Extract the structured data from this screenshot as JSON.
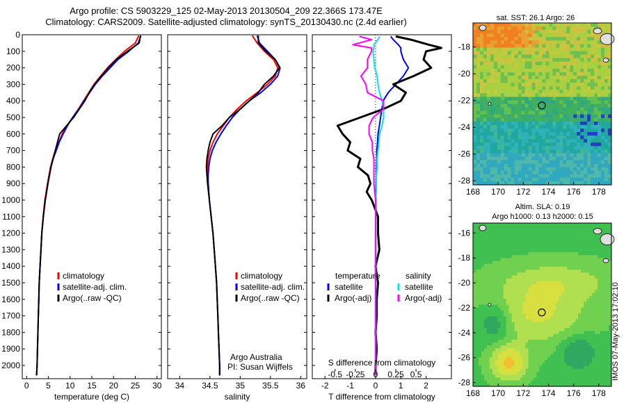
{
  "title_line1": "Argo profile: CS 5903229_125 02-May-2013 20130504_209 22.366S 173.47E",
  "title_line2": "Climatology: CARS2009. Satellite-adjusted climatology: synTS_20130430.nc (2.4d earlier)",
  "credit": "IMOS 07-May-2013 17:02:10",
  "colors": {
    "climatology": "#ff0000",
    "satellite": "#0000ff",
    "argo": "#000000",
    "sat_salinity": "#00e5ee",
    "argo_salinity": "#ff00ff"
  },
  "chart_data": [
    {
      "type": "line",
      "panel": "temperature",
      "xlabel": "temperature (deg C)",
      "xlim": [
        -1,
        31
      ],
      "xticks": [
        0,
        5,
        10,
        15,
        20,
        25,
        30
      ],
      "ylim": [
        2080,
        0
      ],
      "yticks": [
        0,
        100,
        200,
        300,
        400,
        500,
        600,
        700,
        800,
        900,
        1000,
        1100,
        1200,
        1300,
        1400,
        1500,
        1600,
        1700,
        1800,
        1900,
        2000
      ],
      "legend": [
        "climatology",
        "satellite-adj. clim.",
        "Argo(..raw -QC)"
      ],
      "depth": [
        5,
        50,
        100,
        150,
        200,
        250,
        300,
        350,
        400,
        450,
        500,
        550,
        600,
        650,
        700,
        750,
        800,
        900,
        1000,
        1100,
        1200,
        1300,
        1400,
        1500,
        1600,
        1700,
        1800,
        1900,
        2000,
        2060
      ],
      "series": [
        {
          "name": "climatology",
          "color": "#ff0000",
          "values": [
            25.8,
            25.0,
            22.5,
            20.5,
            18.6,
            17.0,
            15.5,
            14.3,
            13.1,
            11.9,
            10.6,
            9.3,
            8.2,
            7.4,
            6.6,
            6.0,
            5.5,
            4.8,
            4.2,
            3.8,
            3.5,
            3.3,
            3.1,
            2.9,
            2.8,
            2.7,
            2.6,
            2.5,
            2.4,
            2.3
          ]
        },
        {
          "name": "satellite-adj. clim.",
          "color": "#0000ff",
          "values": [
            26.3,
            25.7,
            23.5,
            21.0,
            19.2,
            17.4,
            15.8,
            14.5,
            13.2,
            12.0,
            10.6,
            9.4,
            8.4,
            7.5,
            6.8,
            6.1,
            5.6,
            4.9,
            4.3,
            3.85,
            3.5,
            3.3,
            3.1,
            2.9,
            2.8,
            2.7,
            2.6,
            2.5,
            2.4,
            2.3
          ]
        },
        {
          "name": "Argo(..raw -QC)",
          "color": "#000000",
          "values": [
            26.2,
            25.9,
            23.2,
            20.6,
            18.8,
            17.2,
            15.6,
            14.4,
            13.4,
            12.1,
            10.8,
            9.2,
            7.6,
            7.1,
            6.6,
            6.1,
            5.6,
            4.9,
            4.3,
            3.85,
            3.5,
            3.3,
            3.1,
            2.9,
            2.8,
            2.7,
            2.6,
            2.5,
            2.4,
            2.3
          ]
        }
      ]
    },
    {
      "type": "line",
      "panel": "salinity",
      "xlabel": "salinity",
      "xlim": [
        33.8,
        36.1
      ],
      "xticks": [
        34,
        34.5,
        35,
        35.5,
        36
      ],
      "ylim": [
        2080,
        0
      ],
      "legend": [
        "climatology",
        "satellite-adj. clim.",
        "Argo(..raw -QC)"
      ],
      "annotation": [
        "Argo Australia",
        "PI: Susan Wijffels"
      ],
      "depth": [
        5,
        50,
        100,
        150,
        200,
        250,
        300,
        350,
        400,
        450,
        500,
        550,
        600,
        650,
        700,
        750,
        800,
        850,
        900,
        1000,
        1100,
        1200,
        1300,
        1400,
        1500,
        1600,
        1700,
        1800,
        1900,
        2000,
        2060
      ],
      "series": [
        {
          "name": "climatology",
          "color": "#ff0000",
          "values": [
            35.2,
            35.28,
            35.4,
            35.55,
            35.62,
            35.58,
            35.45,
            35.28,
            35.1,
            34.95,
            34.82,
            34.72,
            34.62,
            34.55,
            34.5,
            34.47,
            34.46,
            34.46,
            34.47,
            34.49,
            34.52,
            34.55,
            34.57,
            34.59,
            34.61,
            34.62,
            34.63,
            34.64,
            34.65,
            34.66,
            34.66
          ]
        },
        {
          "name": "satellite-adj. clim.",
          "color": "#0000ff",
          "values": [
            35.28,
            35.32,
            35.45,
            35.58,
            35.66,
            35.62,
            35.5,
            35.34,
            35.15,
            35.0,
            34.87,
            34.77,
            34.68,
            34.6,
            34.54,
            34.5,
            34.48,
            34.47,
            34.47,
            34.49,
            34.52,
            34.55,
            34.57,
            34.59,
            34.61,
            34.62,
            34.63,
            34.64,
            34.65,
            34.66,
            34.66
          ]
        },
        {
          "name": "Argo(..raw -QC)",
          "color": "#000000",
          "values": [
            35.3,
            35.3,
            35.42,
            35.58,
            35.65,
            35.55,
            35.4,
            35.3,
            35.15,
            35.0,
            34.82,
            34.7,
            34.55,
            34.5,
            34.47,
            34.45,
            34.44,
            34.45,
            34.46,
            34.49,
            34.52,
            34.55,
            34.57,
            34.59,
            34.61,
            34.62,
            34.63,
            34.64,
            34.65,
            34.66,
            34.66
          ]
        }
      ]
    },
    {
      "type": "line",
      "panel": "difference",
      "xlabel": "T difference from climatology",
      "xlabel_top": "S difference from climatology",
      "xlim": [
        -2.5,
        3.0
      ],
      "xticks": [
        -2,
        -1,
        0,
        1,
        2
      ],
      "sticks": [
        -0.5,
        -0.25,
        0,
        0.25,
        0.5
      ],
      "sticklabels": [
        "-0.5",
        "-0.25",
        "0",
        "0.25",
        "0.5"
      ],
      "legend_headers": [
        "temperature",
        "salinity"
      ],
      "legend": [
        "satellite",
        "Argo(-adj)",
        "satellite",
        "Argo(-adj)"
      ],
      "depth": [
        10,
        30,
        60,
        80,
        100,
        150,
        200,
        250,
        300,
        350,
        400,
        450,
        500,
        550,
        600,
        650,
        700,
        750,
        800,
        850,
        900,
        950,
        1000,
        1100,
        1200,
        1300,
        1400,
        1500,
        1600,
        1700,
        1800,
        1900,
        2000,
        2060
      ],
      "series": [
        {
          "name": "satellite",
          "variable": "temperature",
          "color": "#0000ff",
          "values": [
            0.6,
            0.7,
            0.9,
            1.0,
            1.0,
            1.1,
            1.3,
            1.1,
            0.8,
            0.5,
            0.3,
            0.25,
            0.2,
            0.15,
            0.1,
            0.08,
            0.05,
            0.05,
            0.04,
            0.03,
            0.02,
            0.02,
            0.01,
            0.01,
            0,
            0,
            0,
            0,
            0,
            0,
            0,
            0,
            0,
            0
          ]
        },
        {
          "name": "Argo(-adj)",
          "variable": "temperature",
          "color": "#000000",
          "values": [
            0.8,
            1.4,
            2.1,
            2.6,
            2.0,
            1.9,
            2.2,
            1.5,
            0.7,
            1.2,
            1.0,
            0.3,
            -0.6,
            -1.5,
            -1.3,
            -1.0,
            -1.1,
            -0.6,
            -0.7,
            -0.3,
            -0.2,
            -0.35,
            -0.15,
            0.1,
            0.1,
            0.15,
            0,
            0.1,
            0.05,
            0.05,
            0,
            0.05,
            0,
            0
          ]
        },
        {
          "name": "satellite",
          "variable": "salinity",
          "color": "#00e5ee",
          "values": [
            0.05,
            0.03,
            -0.02,
            -0.02,
            -0.03,
            -0.02,
            -0.01,
            0.02,
            0.03,
            0.05,
            0.08,
            0.1,
            0.1,
            0.08,
            0.05,
            0.04,
            0.03,
            0.02,
            0.02,
            0.01,
            0.01,
            0.01,
            0,
            0,
            0,
            0,
            0,
            0,
            0,
            0,
            0,
            0,
            0,
            0
          ]
        },
        {
          "name": "Argo(-adj)",
          "variable": "salinity",
          "color": "#ff00ff",
          "values": [
            -0.2,
            -0.05,
            -0.28,
            -0.05,
            -0.05,
            -0.1,
            -0.1,
            -0.18,
            -0.12,
            -0.1,
            0.1,
            0.1,
            -0.03,
            -0.08,
            -0.08,
            -0.04,
            -0.04,
            -0.02,
            -0.02,
            -0.02,
            -0.02,
            -0.01,
            0,
            0,
            0,
            0,
            0,
            0,
            0,
            0,
            0,
            0,
            0,
            0
          ]
        }
      ]
    },
    {
      "type": "heatmap",
      "panel": "sst-map",
      "title": "sat. SST: 26.1  Argo: 26",
      "xlim": [
        168,
        179
      ],
      "ylim": [
        -28.3,
        -16.2
      ],
      "xticks": [
        168,
        170,
        172,
        174,
        176,
        178
      ],
      "yticks": [
        -18,
        -20,
        -22,
        -24,
        -26,
        -28
      ],
      "marker": [
        173.47,
        -22.37
      ]
    },
    {
      "type": "heatmap",
      "panel": "sla-map",
      "title": "Altim. SLA: 0.19",
      "subtitle": "Argo h1000: 0.13 h2000: 0.15",
      "xlim": [
        168,
        179
      ],
      "ylim": [
        -28.3,
        -15.2
      ],
      "xticks": [
        168,
        170,
        172,
        174,
        176,
        178
      ],
      "yticks": [
        -16,
        -18,
        -20,
        -22,
        -24,
        -26,
        -28
      ],
      "marker": [
        173.47,
        -22.37
      ]
    }
  ]
}
